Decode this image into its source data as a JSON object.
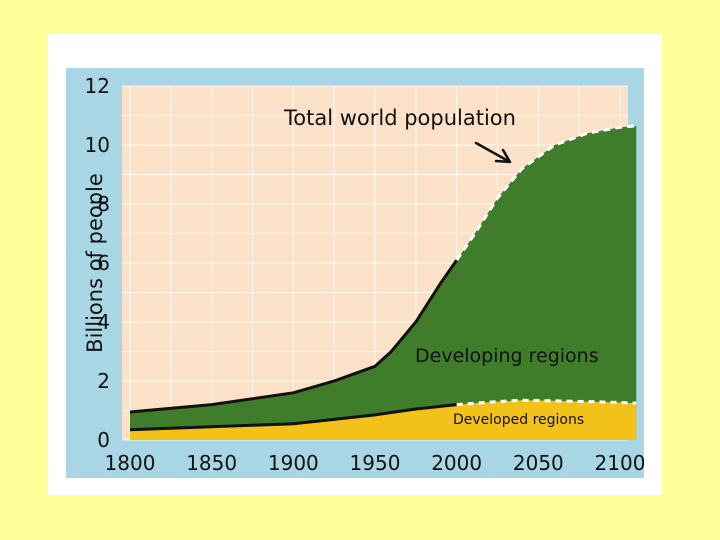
{
  "chart_data": {
    "type": "area",
    "title": "",
    "ylabel": "Billions of people",
    "xlabel": "",
    "xlim": [
      1800,
      2100
    ],
    "ylim": [
      0,
      12
    ],
    "x_ticks": [
      1800,
      1850,
      1900,
      1950,
      2000,
      2050,
      2100
    ],
    "y_ticks": [
      0,
      2,
      4,
      6,
      8,
      10,
      12
    ],
    "grid": true,
    "projection_start_year": 2000,
    "series": [
      {
        "name": "Developed regions",
        "color": "#f2c21b",
        "x": [
          1800,
          1850,
          1900,
          1925,
          1950,
          1975,
          2000,
          2025,
          2040,
          2060,
          2080,
          2100,
          2110
        ],
        "values": [
          0.35,
          0.45,
          0.55,
          0.7,
          0.85,
          1.05,
          1.2,
          1.3,
          1.35,
          1.33,
          1.3,
          1.27,
          1.25
        ]
      },
      {
        "name": "Developing regions",
        "color": "#3f7d2a",
        "x": [
          1800,
          1850,
          1900,
          1925,
          1950,
          1960,
          1975,
          1990,
          2000,
          2010,
          2025,
          2040,
          2060,
          2080,
          2100,
          2110
        ],
        "values": [
          0.6,
          0.75,
          1.05,
          1.3,
          1.65,
          2.0,
          2.9,
          4.1,
          4.9,
          5.7,
          6.9,
          7.9,
          8.7,
          9.1,
          9.35,
          9.4
        ]
      }
    ],
    "total": {
      "name": "Total world population",
      "x": [
        1800,
        1850,
        1900,
        1925,
        1950,
        1960,
        1975,
        1990,
        2000,
        2010,
        2025,
        2040,
        2060,
        2080,
        2100,
        2110
      ],
      "values": [
        0.95,
        1.2,
        1.6,
        2.0,
        2.5,
        3.0,
        4.0,
        5.3,
        6.1,
        6.9,
        8.2,
        9.2,
        10.0,
        10.4,
        10.6,
        10.65
      ]
    },
    "annotations": {
      "total": "Total world population",
      "developing": "Developing regions",
      "developed": "Developed regions"
    }
  },
  "colors": {
    "page_bg": "#ffff99",
    "frame_bg": "#a9d6e5",
    "plot_bg": "#fbe1c7",
    "grid": "#ffffff",
    "developing": "#3f7d2a",
    "developed": "#f2c21b",
    "outline": "#111111"
  }
}
